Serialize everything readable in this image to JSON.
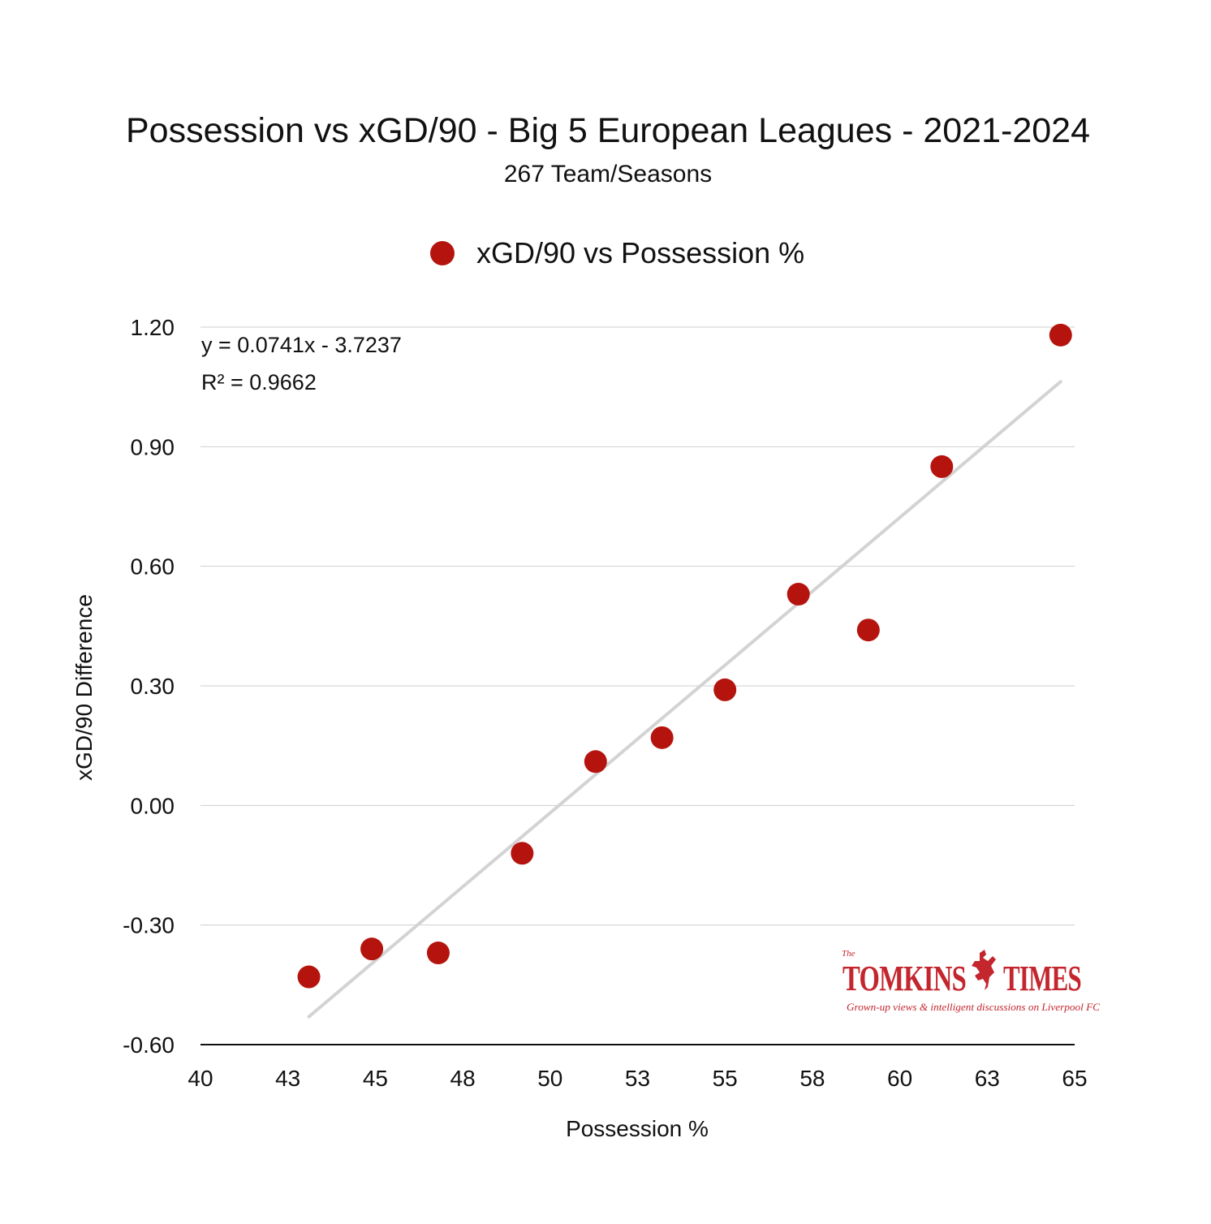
{
  "chart_data": {
    "type": "scatter",
    "title": "Possession vs xGD/90 - Big 5 European Leagues - 2021-2024",
    "subtitle": "267 Team/Seasons",
    "xlabel": "Possession %",
    "ylabel": "xGD/90 Difference",
    "xlim": [
      40,
      65
    ],
    "ylim": [
      -0.6,
      1.2
    ],
    "x_ticks": [
      40,
      42.5,
      45,
      47.5,
      50,
      52.5,
      55,
      57.5,
      60,
      62.5,
      65
    ],
    "x_tick_labels": [
      "40",
      "43",
      "45",
      "48",
      "50",
      "53",
      "55",
      "58",
      "60",
      "63",
      "65"
    ],
    "y_ticks": [
      -0.6,
      -0.3,
      0.0,
      0.3,
      0.6,
      0.9,
      1.2
    ],
    "y_tick_labels": [
      "-0.60",
      "-0.30",
      "0.00",
      "0.30",
      "0.60",
      "0.90",
      "1.20"
    ],
    "grid": true,
    "legend_position": "top-center",
    "series": [
      {
        "name": "xGD/90 vs Possession %",
        "color": "#b5140e",
        "x": [
          43.1,
          44.9,
          46.8,
          49.2,
          51.3,
          53.2,
          55.0,
          57.1,
          59.1,
          61.2,
          64.6
        ],
        "y": [
          -0.43,
          -0.36,
          -0.37,
          -0.12,
          0.11,
          0.17,
          0.29,
          0.53,
          0.44,
          0.85,
          1.18
        ]
      }
    ],
    "trendline": {
      "slope": 0.0741,
      "intercept": -3.7237,
      "x_range": [
        43.1,
        64.6
      ],
      "color": "#d3d3d3",
      "equation_label": "y = 0.0741x - 3.7237",
      "r2_label": "R² = 0.9662"
    }
  },
  "logo": {
    "the": "The",
    "name_left": "TOMKINS",
    "name_right": "TIMES",
    "tagline": "Grown-up views & intelligent discussions on Liverpool FC",
    "color": "#c4262e",
    "emblem": "liverbird-icon"
  }
}
